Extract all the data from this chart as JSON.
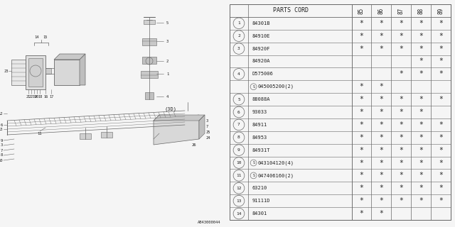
{
  "bg_color": "#f5f5f5",
  "title": "PARTS CORD",
  "columns": [
    "85",
    "86",
    "87",
    "88",
    "89"
  ],
  "rows": [
    {
      "num": "1",
      "part": "84301B",
      "s": false,
      "marks": [
        1,
        1,
        1,
        1,
        1
      ]
    },
    {
      "num": "2",
      "part": "84910E",
      "s": false,
      "marks": [
        1,
        1,
        1,
        1,
        1
      ]
    },
    {
      "num": "3",
      "part": "84920F",
      "s": false,
      "marks": [
        1,
        1,
        1,
        1,
        1
      ]
    },
    {
      "num": "3",
      "part": "84920A",
      "s": false,
      "marks": [
        0,
        0,
        0,
        1,
        1
      ]
    },
    {
      "num": "4",
      "part": "D575006",
      "s": false,
      "marks": [
        0,
        0,
        1,
        1,
        1
      ]
    },
    {
      "num": "4",
      "part": "045005200(2)",
      "s": true,
      "marks": [
        1,
        1,
        0,
        0,
        0
      ]
    },
    {
      "num": "5",
      "part": "88088A",
      "s": false,
      "marks": [
        1,
        1,
        1,
        1,
        1
      ]
    },
    {
      "num": "6",
      "part": "93033",
      "s": false,
      "marks": [
        1,
        1,
        1,
        1,
        0
      ]
    },
    {
      "num": "7",
      "part": "84911",
      "s": false,
      "marks": [
        1,
        1,
        1,
        1,
        1
      ]
    },
    {
      "num": "8",
      "part": "84953",
      "s": false,
      "marks": [
        1,
        1,
        1,
        1,
        1
      ]
    },
    {
      "num": "9",
      "part": "84931T",
      "s": false,
      "marks": [
        1,
        1,
        1,
        1,
        1
      ]
    },
    {
      "num": "10",
      "part": "043104120(4)",
      "s": true,
      "marks": [
        1,
        1,
        1,
        1,
        1
      ]
    },
    {
      "num": "11",
      "part": "047406160(2)",
      "s": true,
      "marks": [
        1,
        1,
        1,
        1,
        1
      ]
    },
    {
      "num": "12",
      "part": "63210",
      "s": false,
      "marks": [
        1,
        1,
        1,
        1,
        1
      ]
    },
    {
      "num": "13",
      "part": "91111D",
      "s": false,
      "marks": [
        1,
        1,
        1,
        1,
        1
      ]
    },
    {
      "num": "14",
      "part": "84301",
      "s": false,
      "marks": [
        1,
        1,
        0,
        0,
        0
      ]
    }
  ],
  "footer": "AB43000044",
  "line_color": "#666666",
  "text_color": "#222222"
}
